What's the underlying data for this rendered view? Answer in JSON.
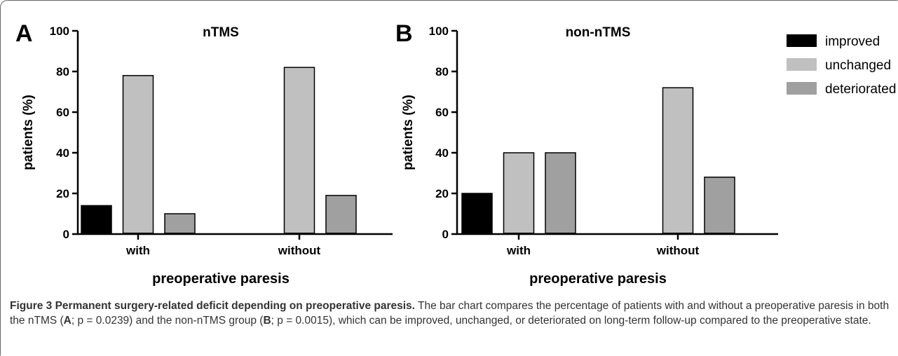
{
  "figure": {
    "caption_title": "Figure 3 Permanent surgery-related deficit depending on preoperative paresis.",
    "caption_part1": " The bar chart compares the percentage of patients with and without a preoperative paresis in both the nTMS (",
    "caption_bold_a": "A",
    "caption_part2": "; p = 0.0239) and the non-nTMS group (",
    "caption_bold_b": "B",
    "caption_part3": "; p = 0.0015), which can be improved, unchanged, or deteriorated on long-term follow-up compared to the preoperative state."
  },
  "legend": {
    "placement": "top-right",
    "items": [
      {
        "label": "improved",
        "color": "#000000"
      },
      {
        "label": "unchanged",
        "color": "#c0c0c0"
      },
      {
        "label": "deteriorated",
        "color": "#a0a0a0"
      }
    ]
  },
  "chart_data": [
    {
      "type": "bar",
      "panel_letter": "A",
      "title": "nTMS",
      "xlabel": "preoperative paresis",
      "ylabel": "patients (%)",
      "ylim": [
        0,
        100
      ],
      "yticks": [
        "0",
        "20",
        "40",
        "60",
        "80",
        "100"
      ],
      "grid": false,
      "categories": [
        "with",
        "without"
      ],
      "series": [
        {
          "name": "improved",
          "color": "#000000",
          "values": [
            14,
            0
          ]
        },
        {
          "name": "unchanged",
          "color": "#c0c0c0",
          "values": [
            78,
            82
          ]
        },
        {
          "name": "deteriorated",
          "color": "#a0a0a0",
          "values": [
            10,
            19
          ]
        }
      ]
    },
    {
      "type": "bar",
      "panel_letter": "B",
      "title": "non-nTMS",
      "xlabel": "preoperative paresis",
      "ylabel": "patients (%)",
      "ylim": [
        0,
        100
      ],
      "yticks": [
        "0",
        "20",
        "40",
        "60",
        "80",
        "100"
      ],
      "grid": false,
      "categories": [
        "with",
        "without"
      ],
      "series": [
        {
          "name": "improved",
          "color": "#000000",
          "values": [
            20,
            0
          ]
        },
        {
          "name": "unchanged",
          "color": "#c0c0c0",
          "values": [
            40,
            72
          ]
        },
        {
          "name": "deteriorated",
          "color": "#a0a0a0",
          "values": [
            40,
            28
          ]
        }
      ]
    }
  ]
}
